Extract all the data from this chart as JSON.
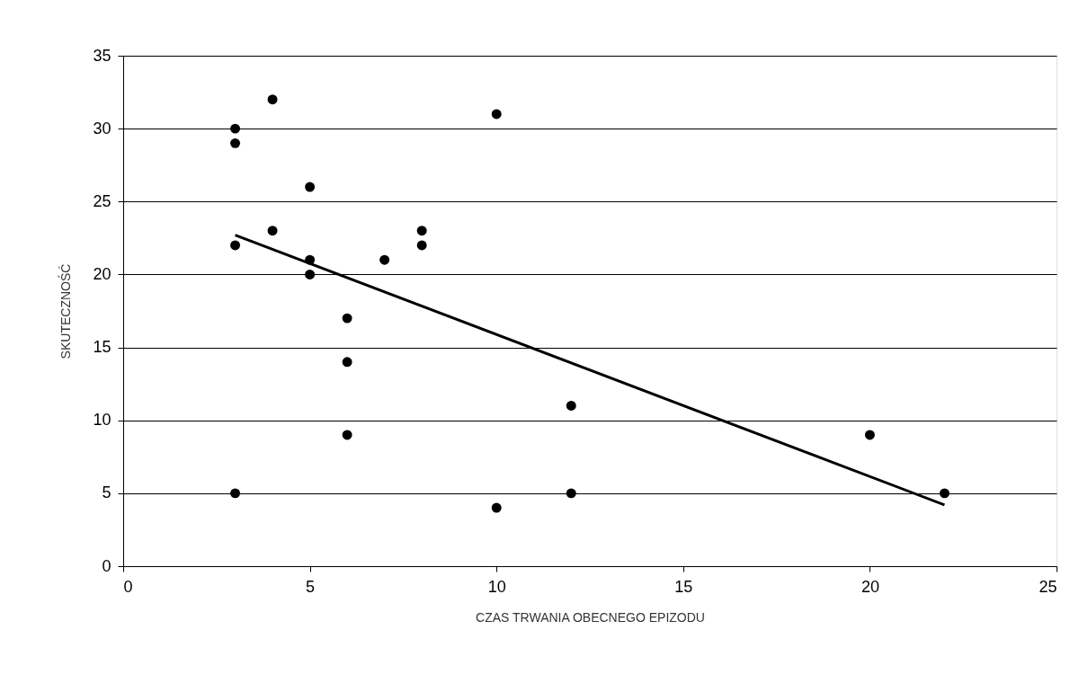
{
  "chart_data": {
    "type": "scatter",
    "xlabel": "CZAS TRWANIA OBECNEGO EPIZODU",
    "ylabel": "SKUTECZNOŚĆ",
    "xlim": [
      0,
      25
    ],
    "xticks": [
      0,
      5,
      10,
      15,
      20,
      25
    ],
    "ylim": [
      0,
      35
    ],
    "yticks": [
      0,
      5,
      10,
      15,
      20,
      25,
      30,
      35
    ],
    "grid": "y",
    "marker": "circle",
    "series": [
      {
        "color": "#000000",
        "x": [
          3,
          3,
          3,
          3,
          4,
          4,
          5,
          5,
          5,
          6,
          6,
          6,
          7,
          8,
          8,
          10,
          10,
          12,
          12,
          20,
          22
        ],
        "values": [
          30,
          29,
          22,
          5,
          32,
          23,
          26,
          21,
          20,
          17,
          14,
          9,
          21,
          23,
          22,
          31,
          4,
          11,
          5,
          9,
          5
        ]
      },
      {
        "type": "line",
        "color": "#000000",
        "marker": "none",
        "x": [
          3,
          22
        ],
        "values": [
          22.7,
          4.2
        ]
      }
    ]
  }
}
